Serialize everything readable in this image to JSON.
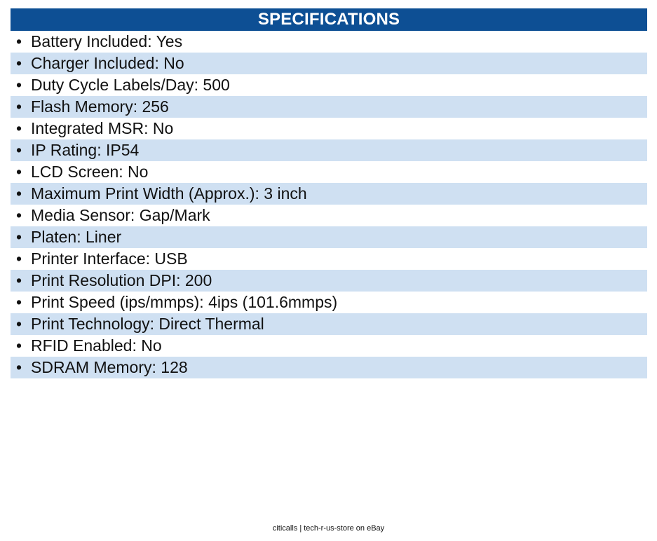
{
  "header": {
    "title": "SPECIFICATIONS"
  },
  "bullet_char": "•",
  "specs": [
    "Battery Included: Yes",
    "Charger Included: No",
    "Duty Cycle Labels/Day: 500",
    "Flash Memory: 256",
    "Integrated MSR: No",
    "IP Rating: IP54",
    "LCD Screen: No",
    "Maximum Print Width (Approx.): 3 inch",
    "Media Sensor: Gap/Mark",
    "Platen: Liner",
    "Printer Interface: USB",
    "Print Resolution DPI: 200",
    "Print Speed (ips/mmps): 4ips (101.6mmps)",
    "Print Technology: Direct Thermal",
    "RFID Enabled: No",
    "SDRAM Memory: 128"
  ],
  "footer": {
    "text": "citicalls | tech-r-us-store on eBay"
  },
  "colors": {
    "header_bg": "#0d4f94",
    "stripe_bg": "#cfe0f2"
  }
}
